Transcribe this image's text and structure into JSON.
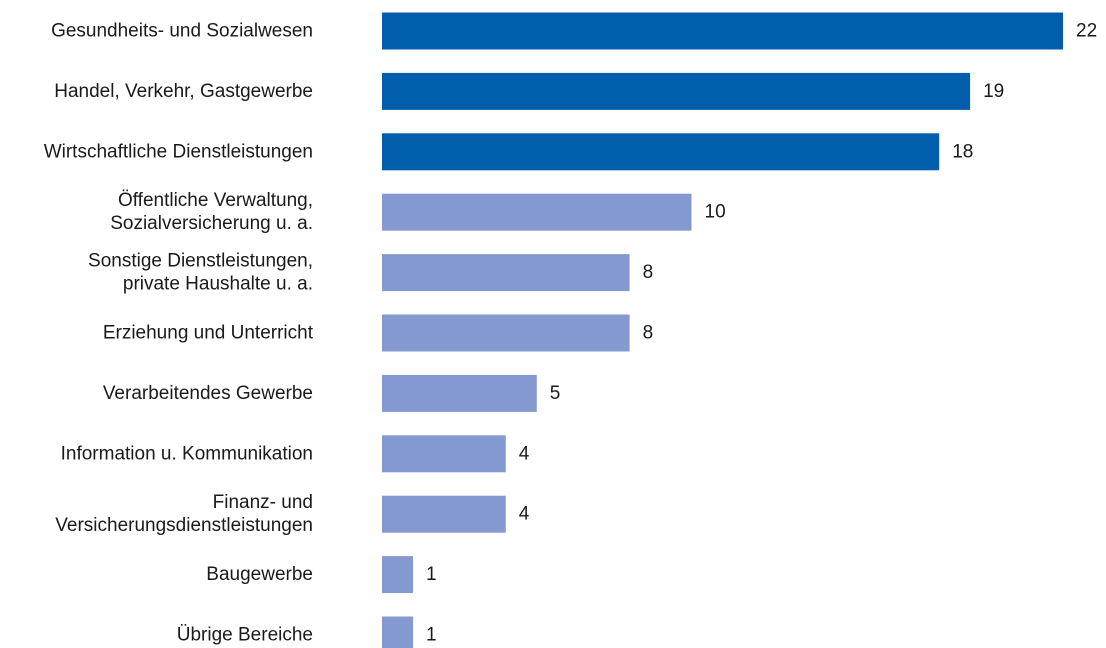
{
  "chart_data": {
    "type": "bar",
    "orientation": "horizontal",
    "categories": [
      [
        "Gesundheits- und Sozialwesen"
      ],
      [
        "Handel, Verkehr, Gastgewerbe"
      ],
      [
        "Wirtschaftliche Dienstleistungen"
      ],
      [
        "Öffentliche Verwaltung,",
        "Sozialversicherung u. a."
      ],
      [
        "Sonstige Dienstleistungen,",
        "private Haushalte u. a."
      ],
      [
        "Erziehung und Unterricht"
      ],
      [
        "Verarbeitendes Gewerbe"
      ],
      [
        "Information u. Kommunikation"
      ],
      [
        "Finanz- und",
        "Versicherungsdienstleistungen"
      ],
      [
        "Baugewerbe"
      ],
      [
        "Übrige Bereiche"
      ]
    ],
    "values": [
      22,
      19,
      18,
      10,
      8,
      8,
      5,
      4,
      4,
      1,
      1
    ],
    "highlighted": [
      true,
      true,
      true,
      false,
      false,
      false,
      false,
      false,
      false,
      false,
      false
    ],
    "colors": {
      "highlight": "#005ead",
      "normal": "#8499d0"
    },
    "xlim": [
      0,
      22
    ],
    "grid": false,
    "legend": "none"
  }
}
